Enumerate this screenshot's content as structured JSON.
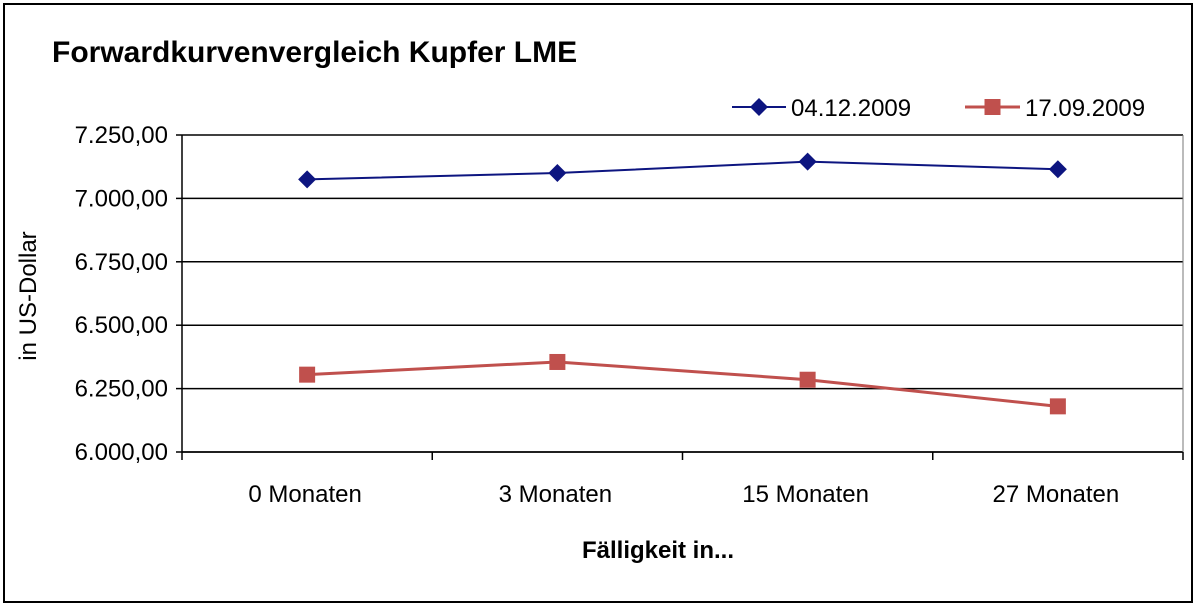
{
  "chart_data": {
    "type": "line",
    "title": "Forwardkurvenvergleich Kupfer LME",
    "xlabel": "Fälligkeit in...",
    "ylabel": "in US-Dollar",
    "categories": [
      "0 Monaten",
      "3 Monaten",
      "15 Monaten",
      "27 Monaten"
    ],
    "ylim": [
      6000,
      7250
    ],
    "yticks": [
      6000,
      6250,
      6500,
      6750,
      7000,
      7250
    ],
    "ytick_labels": [
      "6.000,00",
      "6.250,00",
      "6.500,00",
      "6.750,00",
      "7.000,00",
      "7.250,00"
    ],
    "grid": true,
    "legend_position": "top-right",
    "series": [
      {
        "name": "04.12.2009",
        "values": [
          7075,
          7100,
          7145,
          7115
        ],
        "color": "#0d1580",
        "marker": "diamond"
      },
      {
        "name": "17.09.2009",
        "values": [
          6305,
          6355,
          6285,
          6180
        ],
        "color": "#c0504d",
        "marker": "square"
      }
    ]
  }
}
